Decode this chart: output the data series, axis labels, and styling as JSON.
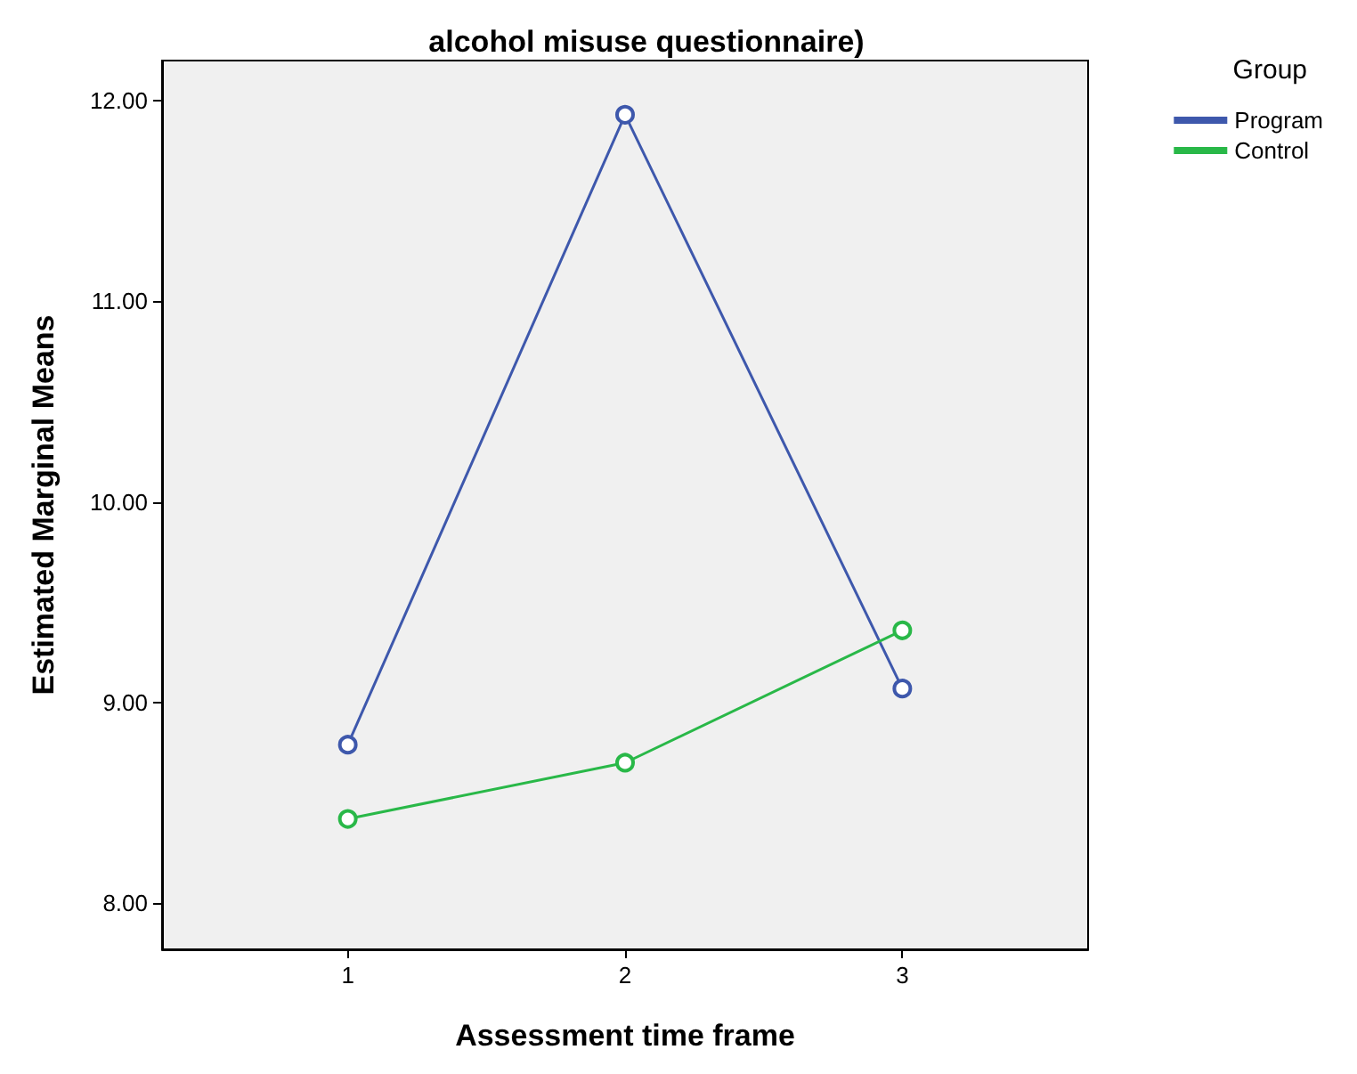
{
  "chart_data": {
    "type": "line",
    "title": "alcohol misuse questionnaire)",
    "xlabel": "Assessment time frame",
    "ylabel": "Estimated Marginal Means",
    "legend_title": "Group",
    "x": [
      1,
      2,
      3
    ],
    "series": [
      {
        "name": "Program",
        "color": "#3e58ac",
        "values": [
          8.79,
          11.93,
          9.07
        ]
      },
      {
        "name": "Control",
        "color": "#29b848",
        "values": [
          8.42,
          8.7,
          9.36
        ]
      }
    ],
    "xlim": [
      0.33,
      3.67
    ],
    "xticks": [
      1,
      2,
      3
    ],
    "ylim": [
      7.77,
      12.2
    ],
    "yticks": [
      {
        "value": 8,
        "label": "8.00"
      },
      {
        "value": 9,
        "label": "9.00"
      },
      {
        "value": 10,
        "label": "10.00"
      },
      {
        "value": 11,
        "label": "11.00"
      },
      {
        "value": 12,
        "label": "12.00"
      }
    ],
    "marker": "circle",
    "line_style": "solid",
    "grid": false,
    "legend": "right"
  }
}
